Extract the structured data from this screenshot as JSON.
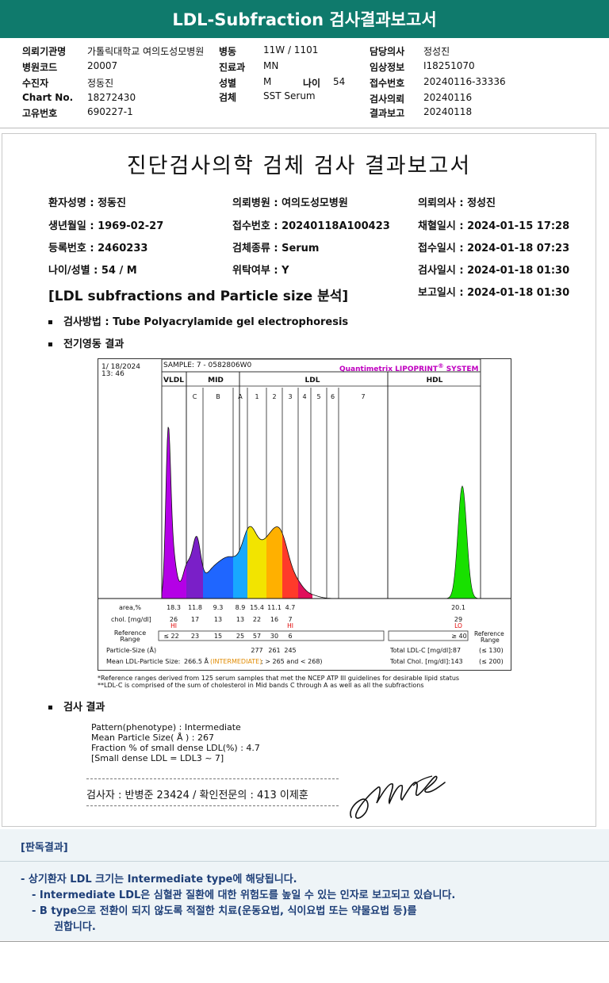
{
  "header": {
    "title": "LDL-Subfraction 검사결과보고서",
    "fields": [
      {
        "label": "의뢰기관명",
        "value": "가톨릭대학교 여의도성모병원"
      },
      {
        "label": "병동",
        "value": "11W / 1101"
      },
      {
        "label": "담당의사",
        "value": "정성진"
      },
      {
        "label": "병원코드",
        "value": "20007"
      },
      {
        "label": "진료과",
        "value": "MN"
      },
      {
        "label": "임상정보",
        "value": "I18251070"
      },
      {
        "label": "수진자",
        "value": "정동진"
      },
      {
        "label": "성별",
        "value": "M"
      },
      {
        "label": "나이",
        "value": "54"
      },
      {
        "label": "접수번호",
        "value": "20240116-33336"
      },
      {
        "label": "Chart No.",
        "value": "18272430"
      },
      {
        "label": "검체",
        "value": "SST Serum"
      },
      {
        "label": "검사의뢰",
        "value": "20240116"
      },
      {
        "label": "고유번호",
        "value": "690227-1"
      },
      {
        "label": "결과보고",
        "value": "20240118"
      }
    ]
  },
  "report": {
    "title": "진단검사의학 검체 검사 결과보고서",
    "patient": [
      "환자성명 : 정동진",
      "의뢰병원 : 여의도성모병원",
      "의뢰의사 : 정성진",
      "생년월일 : 1969-02-27",
      "접수번호 : 20240118A100423",
      "채혈일시 : 2024-01-15 17:28",
      "등록번호 : 2460233",
      "검체종류 : Serum",
      "접수일시 : 2024-01-18 07:23",
      "나이/성별 : 54 / M",
      "위탁여부 : Y",
      "검사일시 : 2024-01-18 01:30",
      "보고일시 : 2024-01-18 01:30"
    ],
    "section_title": "[LDL subfractions and Particle size 분석]",
    "method": "검사방법 : Tube Polyacrylamide gel electrophoresis",
    "electro_title": "전기영동 결과",
    "result_title": "검사 결과",
    "result_lines": [
      "Pattern(phenotype) : Intermediate",
      "Mean Particle Size( Å ) : 267",
      "Fraction % of small dense LDL(%) : 4.7",
      "[Small dense LDL = LDL3 ~ 7]"
    ],
    "signature_line": "검사자 : 반병준 23424 / 확인전문의 : 413 이제훈",
    "footnotes": [
      "*Reference ranges derived from 125 serum samples that met the NCEP ATP III guidelines for desirable lipid status",
      "**LDL-C is comprised of the sum of cholesterol in Mid bands C through A as well as all the subfractions"
    ]
  },
  "chart_data": {
    "type": "area",
    "date": "1/ 18/2024",
    "time": "13: 46",
    "sample": "SAMPLE:   7 - 0582806W0",
    "brand": "Quantimetrix LIPOPRINT",
    "brand_sup": "®",
    "brand_suffix": " SYSTEM",
    "groups": [
      "VLDL",
      "MID",
      "LDL",
      "HDL"
    ],
    "bands": [
      "C",
      "B",
      "A",
      "1",
      "2",
      "3",
      "4",
      "5",
      "6",
      "7"
    ],
    "row_labels": {
      "area": "area,%",
      "chol": "chol. [mg/dl]",
      "ref1": "Reference",
      "ref2": "Range",
      "size": "Particle-Size (Å)",
      "mean": "Mean LDL-Particle Size:"
    },
    "area": [
      "18.3",
      "11.8",
      "9.3",
      "8.9",
      "15.4",
      "11.1",
      "4.7",
      "20.1"
    ],
    "chol": [
      "26",
      "17",
      "13",
      "13",
      "22",
      "16",
      "7",
      "29"
    ],
    "flags": {
      "vldl": "HI",
      "ldl3": "HI",
      "hdl": "LO"
    },
    "reference": [
      "≤ 22",
      "23",
      "15",
      "25",
      "57",
      "30",
      "6",
      "≥ 40"
    ],
    "particle_size": [
      "277",
      "261",
      "245"
    ],
    "mean_size_value": "266.5 Å",
    "mean_size_note": "(INTERMEDIATE)",
    "mean_size_range": "; > 265 and < 268)",
    "total_ldl_label": "Total LDL-C [mg/dl]:",
    "total_ldl": "87",
    "total_ldl_ref": "(≤ 130)",
    "total_chol_label": "Total Chol. [mg/dl]:",
    "total_chol": "143",
    "total_chol_ref": "(≤ 200)",
    "colors": {
      "vldl": "#b400e6",
      "mid_c": "#7a1fc8",
      "mid_b": "#1f66ff",
      "mid_a": "#18a8ff",
      "ldl1": "#f2e400",
      "ldl2": "#ffb000",
      "ldl3": "#ff3a2a",
      "ldl_rest": "#e0105a",
      "hdl": "#18e000"
    }
  },
  "judgement": {
    "title": "[판독결과]",
    "lines": [
      "-  상기환자 LDL 크기는 Intermediate type에 해당됩니다.",
      "-  Intermediate LDL은 심혈관 질환에 대한 위험도를 높일 수 있는 인자로 보고되고 있습니다.",
      "-  B type으로 전환이 되지 않도록 적절한 치료(운동요법, 식이요법 또는 약물요법 등)를",
      "권합니다."
    ]
  }
}
